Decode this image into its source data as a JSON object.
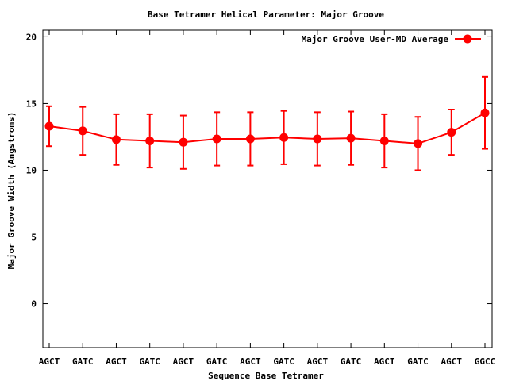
{
  "chart_data": {
    "type": "line",
    "title": "Base Tetramer Helical Parameter: Major Groove",
    "xlabel": "Sequence Base Tetramer",
    "ylabel": "Major Groove Width (Angstroms)",
    "categories": [
      "AGCT",
      "GATC",
      "AGCT",
      "GATC",
      "AGCT",
      "GATC",
      "AGCT",
      "GATC",
      "AGCT",
      "GATC",
      "AGCT",
      "GATC",
      "AGCT",
      "GGCC"
    ],
    "ylim": [
      -3.3,
      20.5
    ],
    "yticks": [
      "0",
      "5",
      "10",
      "15",
      "20"
    ],
    "grid": false,
    "legend_position": "top-right",
    "series": [
      {
        "name": "Major Groove User-MD Average",
        "color": "#ff0000",
        "marker": "circle",
        "values": [
          13.3,
          12.95,
          12.3,
          12.2,
          12.1,
          12.35,
          12.35,
          12.45,
          12.35,
          12.4,
          12.2,
          12.0,
          12.85,
          14.3
        ],
        "errors": [
          1.5,
          1.8,
          1.9,
          2.0,
          2.0,
          2.0,
          2.0,
          2.0,
          2.0,
          2.0,
          2.0,
          2.0,
          1.7,
          2.7
        ]
      }
    ]
  }
}
